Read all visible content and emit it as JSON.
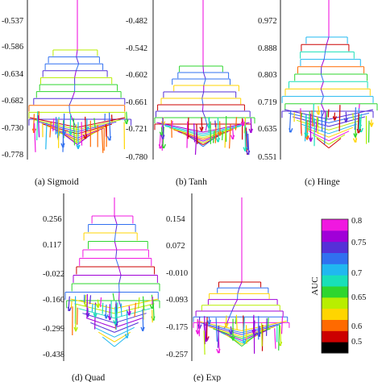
{
  "chart_data": [
    {
      "type": "tree",
      "caption": "(a) Sigmoid",
      "yticks": [
        "-0.537",
        "-0.586",
        "-0.634",
        "-0.682",
        "-0.730",
        "-0.778"
      ],
      "ylim": [
        -0.778,
        -0.515
      ]
    },
    {
      "type": "tree",
      "caption": "(b) Tanh",
      "yticks": [
        "-0.482",
        "-0.542",
        "-0.602",
        "-0.661",
        "-0.721",
        "-0.780"
      ],
      "ylim": [
        -0.78,
        -0.455
      ]
    },
    {
      "type": "tree",
      "caption": "(c) Hinge",
      "yticks": [
        "0.972",
        "0.888",
        "0.803",
        "0.719",
        "0.635",
        "0.551"
      ],
      "ylim": [
        0.551,
        1.0
      ]
    },
    {
      "type": "tree",
      "caption": "(d) Quad",
      "yticks": [
        "0.256",
        "0.117",
        "-0.022",
        "-0.160",
        "-0.299",
        "-0.438"
      ],
      "ylim": [
        -0.438,
        0.31
      ]
    },
    {
      "type": "tree",
      "caption": "(e) Exp",
      "yticks": [
        "0.154",
        "0.072",
        "-0.010",
        "-0.093",
        "-0.175",
        "-0.257"
      ],
      "ylim": [
        -0.257,
        0.2
      ]
    }
  ],
  "colorbar": {
    "label": "AUC",
    "ticks": [
      "0.8",
      "0.75",
      "0.7",
      "0.65",
      "0.6",
      "0.5"
    ],
    "tick_values": [
      0.8,
      0.75,
      0.7,
      0.65,
      0.6,
      0.5
    ],
    "range": [
      0.5,
      0.8
    ],
    "colors": [
      "#000000",
      "#cc0000",
      "#ff6a00",
      "#ffd500",
      "#b8ee00",
      "#2ed62e",
      "#18e0b8",
      "#20b8f0",
      "#3070f0",
      "#5530d8",
      "#a000d8",
      "#f018e0"
    ]
  }
}
